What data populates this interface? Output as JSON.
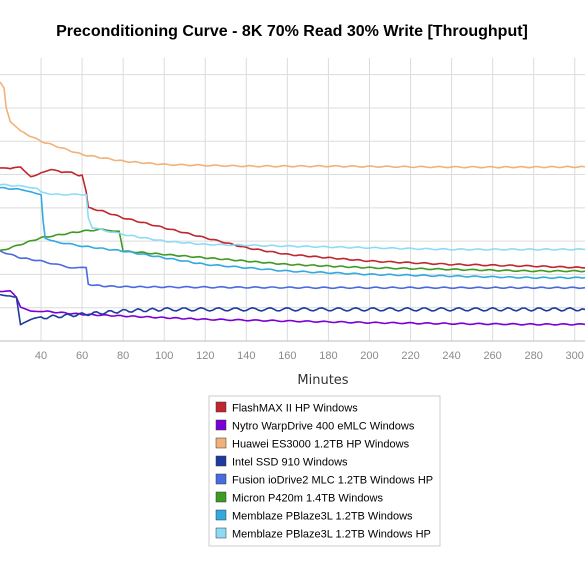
{
  "chart_data": {
    "type": "line",
    "title": "Preconditioning Curve - 8K 70% Read 30% Write [Throughput]",
    "xlabel": "Minutes",
    "ylabel": "",
    "xlim": [
      20,
      305
    ],
    "ylim": [
      0,
      85
    ],
    "x_ticks": [
      40,
      60,
      80,
      100,
      120,
      140,
      160,
      180,
      200,
      220,
      240,
      260,
      280,
      300
    ],
    "grid": true,
    "legend_position": "bottom",
    "series": [
      {
        "name": "FlashMAX II HP Windows",
        "color": "#c0262d",
        "x": [
          20,
          25,
          30,
          35,
          40,
          45,
          50,
          55,
          60,
          62,
          63,
          70,
          80,
          100,
          120,
          140,
          160,
          180,
          200,
          240,
          280,
          305
        ],
        "y": [
          52,
          51,
          52,
          50,
          51,
          51,
          50,
          51,
          50,
          45,
          40,
          39,
          37,
          34,
          31,
          28,
          26,
          25,
          24,
          23,
          22.5,
          22
        ]
      },
      {
        "name": "Nytro WarpDrive 400 eMLC Windows",
        "color": "#7a00d6",
        "x": [
          20,
          25,
          28,
          30,
          35,
          40,
          60,
          80,
          100,
          120,
          160,
          200,
          240,
          280,
          305
        ],
        "y": [
          15,
          15,
          13,
          10,
          9,
          9,
          8,
          7.5,
          7,
          6.5,
          6,
          5.5,
          5.2,
          5,
          5
        ]
      },
      {
        "name": "Huawei ES3000 1.2TB HP Windows",
        "color": "#f0b27a",
        "x": [
          20,
          22,
          23,
          25,
          30,
          40,
          60,
          80,
          100,
          140,
          180,
          220,
          260,
          305
        ],
        "y": [
          78,
          76,
          70,
          66,
          63,
          60,
          56,
          54,
          53,
          52.5,
          52.5,
          52.3,
          52.2,
          52.3
        ]
      },
      {
        "name": "Intel SSD 910 Windows",
        "color": "#1f3a9e",
        "x": [
          20,
          25,
          28,
          30,
          35,
          40,
          60,
          80,
          100,
          140,
          180,
          220,
          260,
          305
        ],
        "y": [
          14,
          14,
          13,
          5,
          6,
          7,
          8,
          9,
          9.5,
          9.5,
          9.5,
          9.5,
          9.5,
          9.5
        ]
      },
      {
        "name": "Fusion ioDrive2 MLC 1.2TB Windows HP",
        "color": "#4a6ae0",
        "x": [
          20,
          30,
          40,
          55,
          60,
          62,
          63,
          70,
          80,
          100,
          140,
          180,
          220,
          260,
          305
        ],
        "y": [
          27,
          25,
          24,
          22,
          22,
          22,
          17,
          16.5,
          16.3,
          16.2,
          16.1,
          16,
          16,
          16,
          16
        ]
      },
      {
        "name": "Micron P420m 1.4TB Windows",
        "color": "#3d9a22",
        "x": [
          20,
          30,
          40,
          50,
          60,
          70,
          78,
          79,
          80,
          100,
          120,
          140,
          160,
          180,
          200,
          240,
          280,
          305
        ],
        "y": [
          27,
          29,
          31,
          32,
          33,
          33.5,
          33,
          30,
          27,
          26,
          25,
          24,
          23,
          22.5,
          22,
          21.5,
          21,
          21
        ]
      },
      {
        "name": "Memblaze PBlaze3L 1.2TB Windows",
        "color": "#33a9df",
        "x": [
          20,
          30,
          35,
          40,
          41,
          42,
          45,
          60,
          80,
          100,
          120,
          160,
          200,
          240,
          280,
          305
        ],
        "y": [
          46,
          45.5,
          45,
          44,
          36,
          31,
          30,
          28.5,
          27,
          25,
          23,
          21,
          20,
          19.5,
          19,
          19
        ]
      },
      {
        "name": "Memblaze PBlaze3L 1.2TB Windows HP",
        "color": "#8edbf7",
        "x": [
          20,
          30,
          38,
          40,
          45,
          60,
          62,
          63,
          65,
          80,
          100,
          120,
          160,
          200,
          240,
          280,
          305
        ],
        "y": [
          47,
          46.5,
          46,
          45,
          44,
          44,
          44,
          37,
          34,
          32,
          30,
          29,
          28.5,
          28,
          27.5,
          27.5,
          27.5
        ]
      }
    ]
  }
}
